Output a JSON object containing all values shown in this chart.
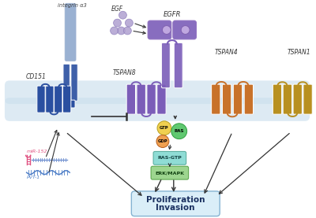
{
  "bg_color": "#ffffff",
  "membrane_color": "#cce0ee",
  "cd151_color": "#2a4fa0",
  "cd151_light": "#6080c0",
  "tspan8_color": "#7b5db8",
  "tspan4_color": "#c8722a",
  "tspan1_color": "#b89020",
  "integrin_color": "#7090c0",
  "egfr_color": "#7b5db8",
  "egf_color": "#b0a0d0",
  "gtp_color": "#f0d050",
  "gdp_color": "#f0a050",
  "ras_color": "#60c870",
  "rasgtp_color": "#80d8d0",
  "erk_color": "#90d080",
  "result_color": "#d8eef8",
  "arrow_color": "#333333",
  "label_color": "#333333",
  "result_text": [
    "Proliferation",
    "Invasion"
  ],
  "labels": {
    "integrin": "integrin α3",
    "cd151": "CD151",
    "tspan8": "TSPAN8",
    "tspan4": "TSPAN4",
    "tspan1": "TSPAN1",
    "egf": "EGF",
    "egfr": "EGFR",
    "gtp": "GTP",
    "gdp": "GDP",
    "ras": "RAS",
    "rasgtp": "RAS-GTP",
    "erk": "ERK/MAPK",
    "mir152": "miR-152",
    "pvt1": "PVT-1"
  }
}
